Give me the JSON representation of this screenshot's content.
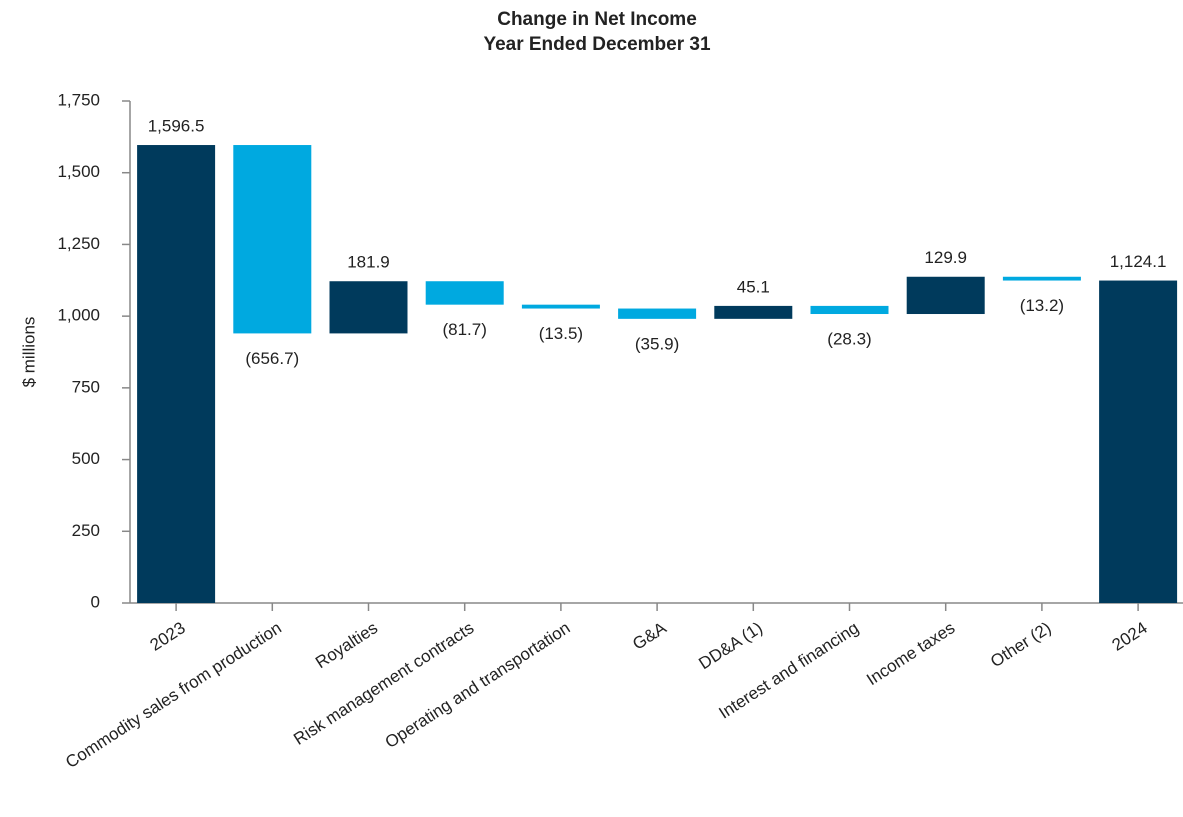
{
  "chart_data": {
    "type": "waterfall",
    "title": "Change in Net Income",
    "subtitle": "Year Ended December 31",
    "y_label": "$ millions",
    "categories": [
      "2023",
      "Commodity sales from production",
      "Royalties",
      "Risk management contracts",
      "Operating and transportation",
      "G&A",
      "DD&A (1)",
      "Interest and financing",
      "Income taxes",
      "Other (2)",
      "2024"
    ],
    "values": [
      1596.5,
      -656.7,
      181.9,
      -81.7,
      -13.5,
      -35.9,
      45.1,
      -28.3,
      129.9,
      -13.2,
      1124.1
    ],
    "value_labels": [
      "1,596.5",
      "(656.7)",
      "181.9",
      "(81.7)",
      "(13.5)",
      "(35.9)",
      "45.1",
      "(28.3)",
      "129.9",
      "(13.2)",
      "1,124.1"
    ],
    "total_color": "#003a5c",
    "increase_color": "#003a5c",
    "decrease_color": "#00a9e0",
    "ylim": [
      0,
      1750
    ],
    "yticks": [
      0,
      250,
      500,
      750,
      {
        "value": 1000,
        "label": "1,000"
      },
      {
        "value": 1250,
        "label": "1,250"
      },
      {
        "value": 1500,
        "label": "1,500"
      },
      {
        "value": 1750,
        "label": "1,750"
      }
    ],
    "grid": false
  }
}
